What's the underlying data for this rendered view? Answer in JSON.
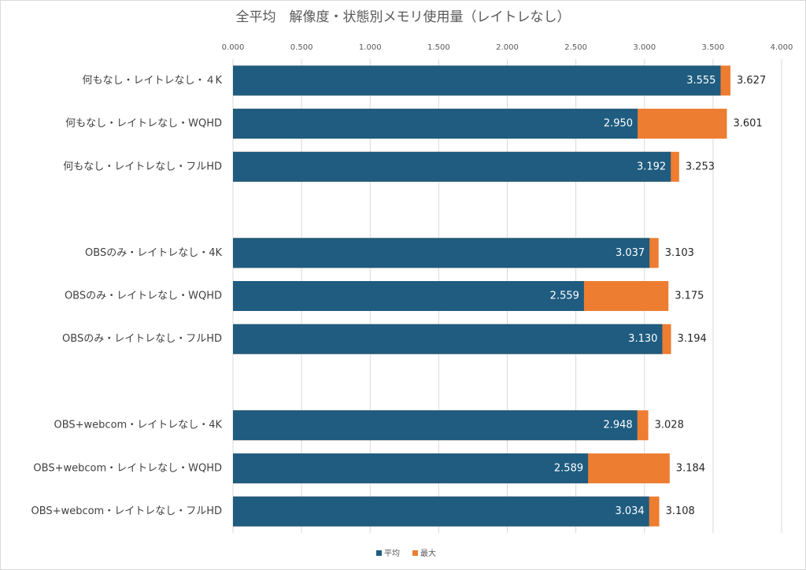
{
  "chart_data": {
    "type": "bar",
    "orientation": "horizontal",
    "overlap": true,
    "title": "全平均　解像度・状態別メモリ使用量（レイトレなし）",
    "categories": [
      "何もなし・レイトレなし・４K",
      "何もなし・レイトレなし・WQHD",
      "何もなし・レイトレなし・フルHD",
      null,
      "OBSのみ・レイトレなし・4K",
      "OBSのみ・レイトレなし・WQHD",
      "OBSのみ・レイトレなし・フルHD",
      null,
      "OBS+webcom・レイトレなし・4K",
      "OBS+webcom・レイトレなし・WQHD",
      "OBS+webcom・レイトレなし・フルHD"
    ],
    "series": [
      {
        "name": "平均",
        "color": "#1f5c80",
        "values": [
          3.555,
          2.95,
          3.192,
          null,
          3.037,
          2.559,
          3.13,
          null,
          2.948,
          2.589,
          3.034
        ],
        "value_labels": [
          "3.555",
          "2.950",
          "3.192",
          null,
          "3.037",
          "2.559",
          "3.130",
          null,
          "2.948",
          "2.589",
          "3.034"
        ]
      },
      {
        "name": "最大",
        "color": "#ed7d31",
        "values": [
          3.627,
          3.601,
          3.253,
          null,
          3.103,
          3.175,
          3.194,
          null,
          3.028,
          3.184,
          3.108
        ],
        "value_labels": [
          "3.627",
          "3.601",
          "3.253",
          null,
          "3.103",
          "3.175",
          "3.194",
          null,
          "3.028",
          "3.184",
          "3.108"
        ]
      }
    ],
    "xlim": [
      0,
      4
    ],
    "xticks": [
      {
        "value": 0,
        "label": "0.000"
      },
      {
        "value": 0.5,
        "label": "0.500"
      },
      {
        "value": 1,
        "label": "1.000"
      },
      {
        "value": 1.5,
        "label": "1.500"
      },
      {
        "value": 2,
        "label": "2.000"
      },
      {
        "value": 2.5,
        "label": "2.500"
      },
      {
        "value": 3,
        "label": "3.000"
      },
      {
        "value": 3.5,
        "label": "3.500"
      },
      {
        "value": 4,
        "label": "4.000"
      }
    ],
    "grid": true,
    "legend": "bottom"
  }
}
